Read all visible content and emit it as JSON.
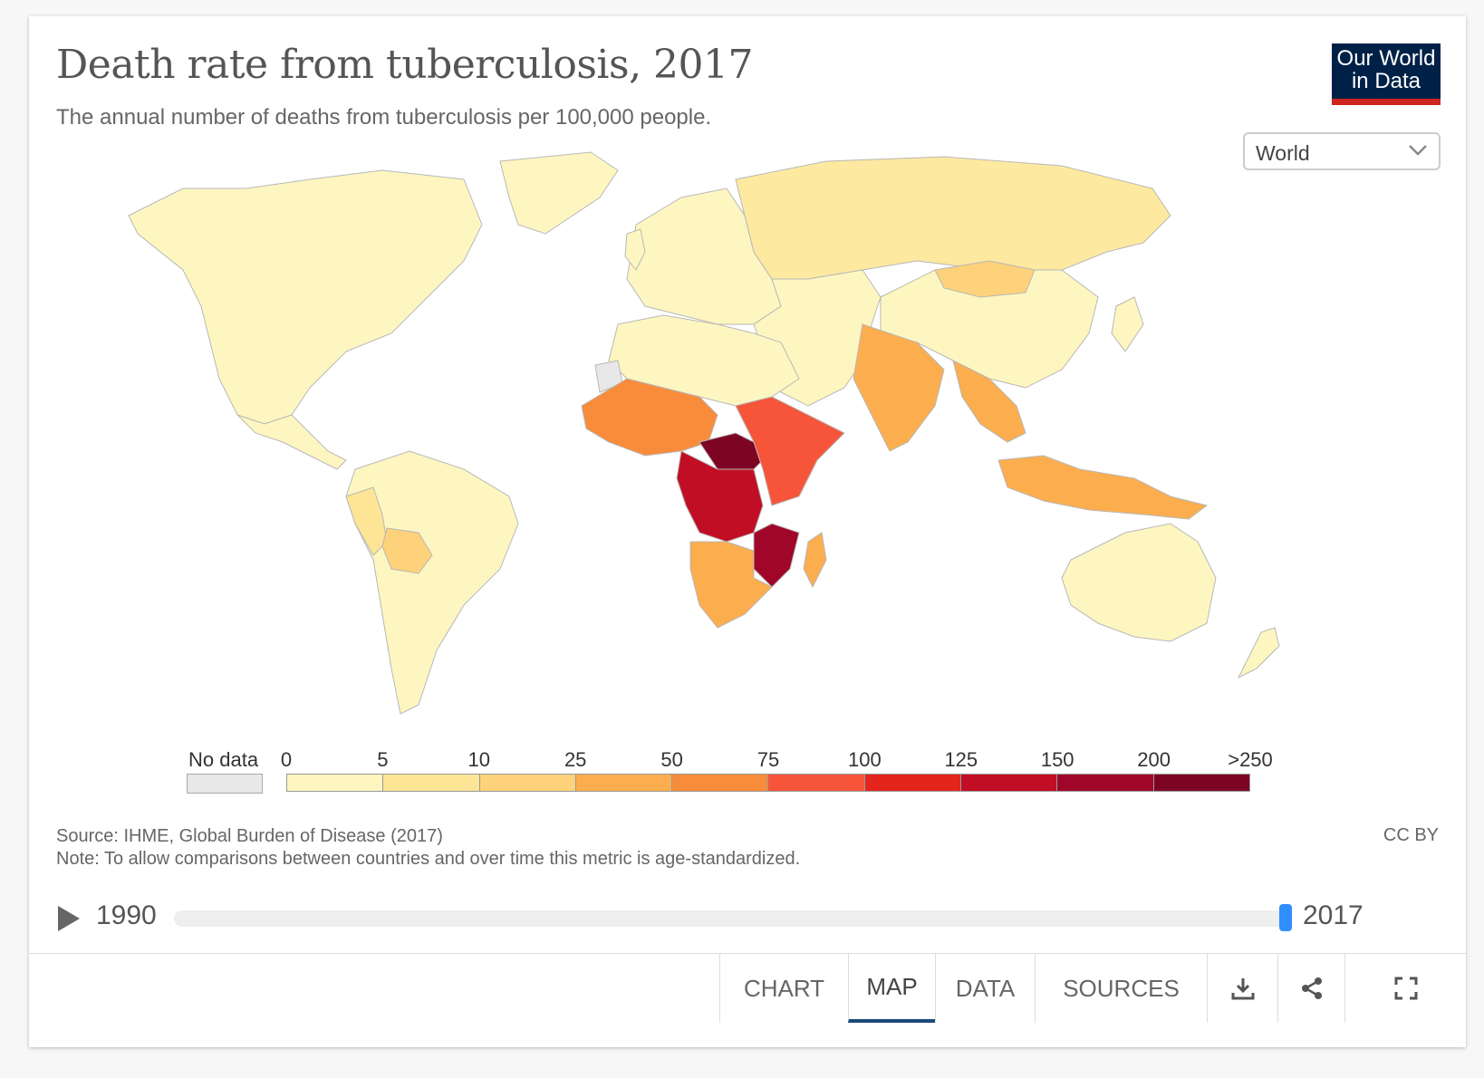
{
  "header": {
    "title": "Death rate from tuberculosis, 2017",
    "subtitle": "The annual number of deaths from tuberculosis per 100,000 people."
  },
  "logo": {
    "line1": "Our World",
    "line2": "in Data"
  },
  "region_select": {
    "value": "World"
  },
  "legend": {
    "no_data_label": "No data",
    "no_data_color": "#e8e8e8",
    "tick_labels": [
      "0",
      "5",
      "10",
      "25",
      "50",
      "75",
      "100",
      "125",
      "150",
      "200",
      ">250"
    ],
    "colors": [
      "#fef6c0",
      "#fde595",
      "#fdd27a",
      "#fcad4e",
      "#f98c3a",
      "#f6553a",
      "#e3251e",
      "#c20e24",
      "#a0062a",
      "#7e0424"
    ]
  },
  "footer": {
    "source": "Source: IHME, Global Burden of Disease (2017)",
    "note": "Note: To allow comparisons between countries and over time this metric is age-standardized.",
    "license": "CC BY"
  },
  "timeline": {
    "start_year": "1990",
    "end_year": "2017",
    "selected_fraction": 1.0
  },
  "tabs": [
    {
      "label": "CHART"
    },
    {
      "label": "MAP",
      "active": true
    },
    {
      "label": "DATA"
    },
    {
      "label": "SOURCES"
    }
  ],
  "icons": {
    "download": "download-icon",
    "share": "share-icon",
    "fullscreen": "fullscreen-icon",
    "play": "play-icon"
  },
  "map_regions": [
    {
      "name": "north-america",
      "color": "#fef6c0"
    },
    {
      "name": "greenland",
      "color": "#fef6c0"
    },
    {
      "name": "south-america",
      "color": "#fef6c0"
    },
    {
      "name": "peru",
      "color": "#fde595"
    },
    {
      "name": "bolivia",
      "color": "#fdd27a"
    },
    {
      "name": "europe",
      "color": "#fef6c0"
    },
    {
      "name": "russia",
      "color": "#fde9a0"
    },
    {
      "name": "north-africa",
      "color": "#fef6c0"
    },
    {
      "name": "west-africa",
      "color": "#f98c3a"
    },
    {
      "name": "central-africa",
      "color": "#c20e24"
    },
    {
      "name": "chad-car",
      "color": "#7e0424"
    },
    {
      "name": "east-africa",
      "color": "#f6553a"
    },
    {
      "name": "southern-africa",
      "color": "#fcad4e"
    },
    {
      "name": "mozambique",
      "color": "#a0062a"
    },
    {
      "name": "middle-east",
      "color": "#fef6c0"
    },
    {
      "name": "china",
      "color": "#fef6c0"
    },
    {
      "name": "mongolia",
      "color": "#fdd27a"
    },
    {
      "name": "india",
      "color": "#fcad4e"
    },
    {
      "name": "southeast-asia",
      "color": "#fcad4e"
    },
    {
      "name": "indonesia",
      "color": "#fcad4e"
    },
    {
      "name": "australia",
      "color": "#fef6c0"
    },
    {
      "name": "new-zealand",
      "color": "#fef6c0"
    },
    {
      "name": "madagascar",
      "color": "#fcad4e"
    },
    {
      "name": "japan",
      "color": "#fef6c0"
    },
    {
      "name": "uk",
      "color": "#fef6c0"
    },
    {
      "name": "western-sahara",
      "color": "#e8e8e8"
    }
  ]
}
